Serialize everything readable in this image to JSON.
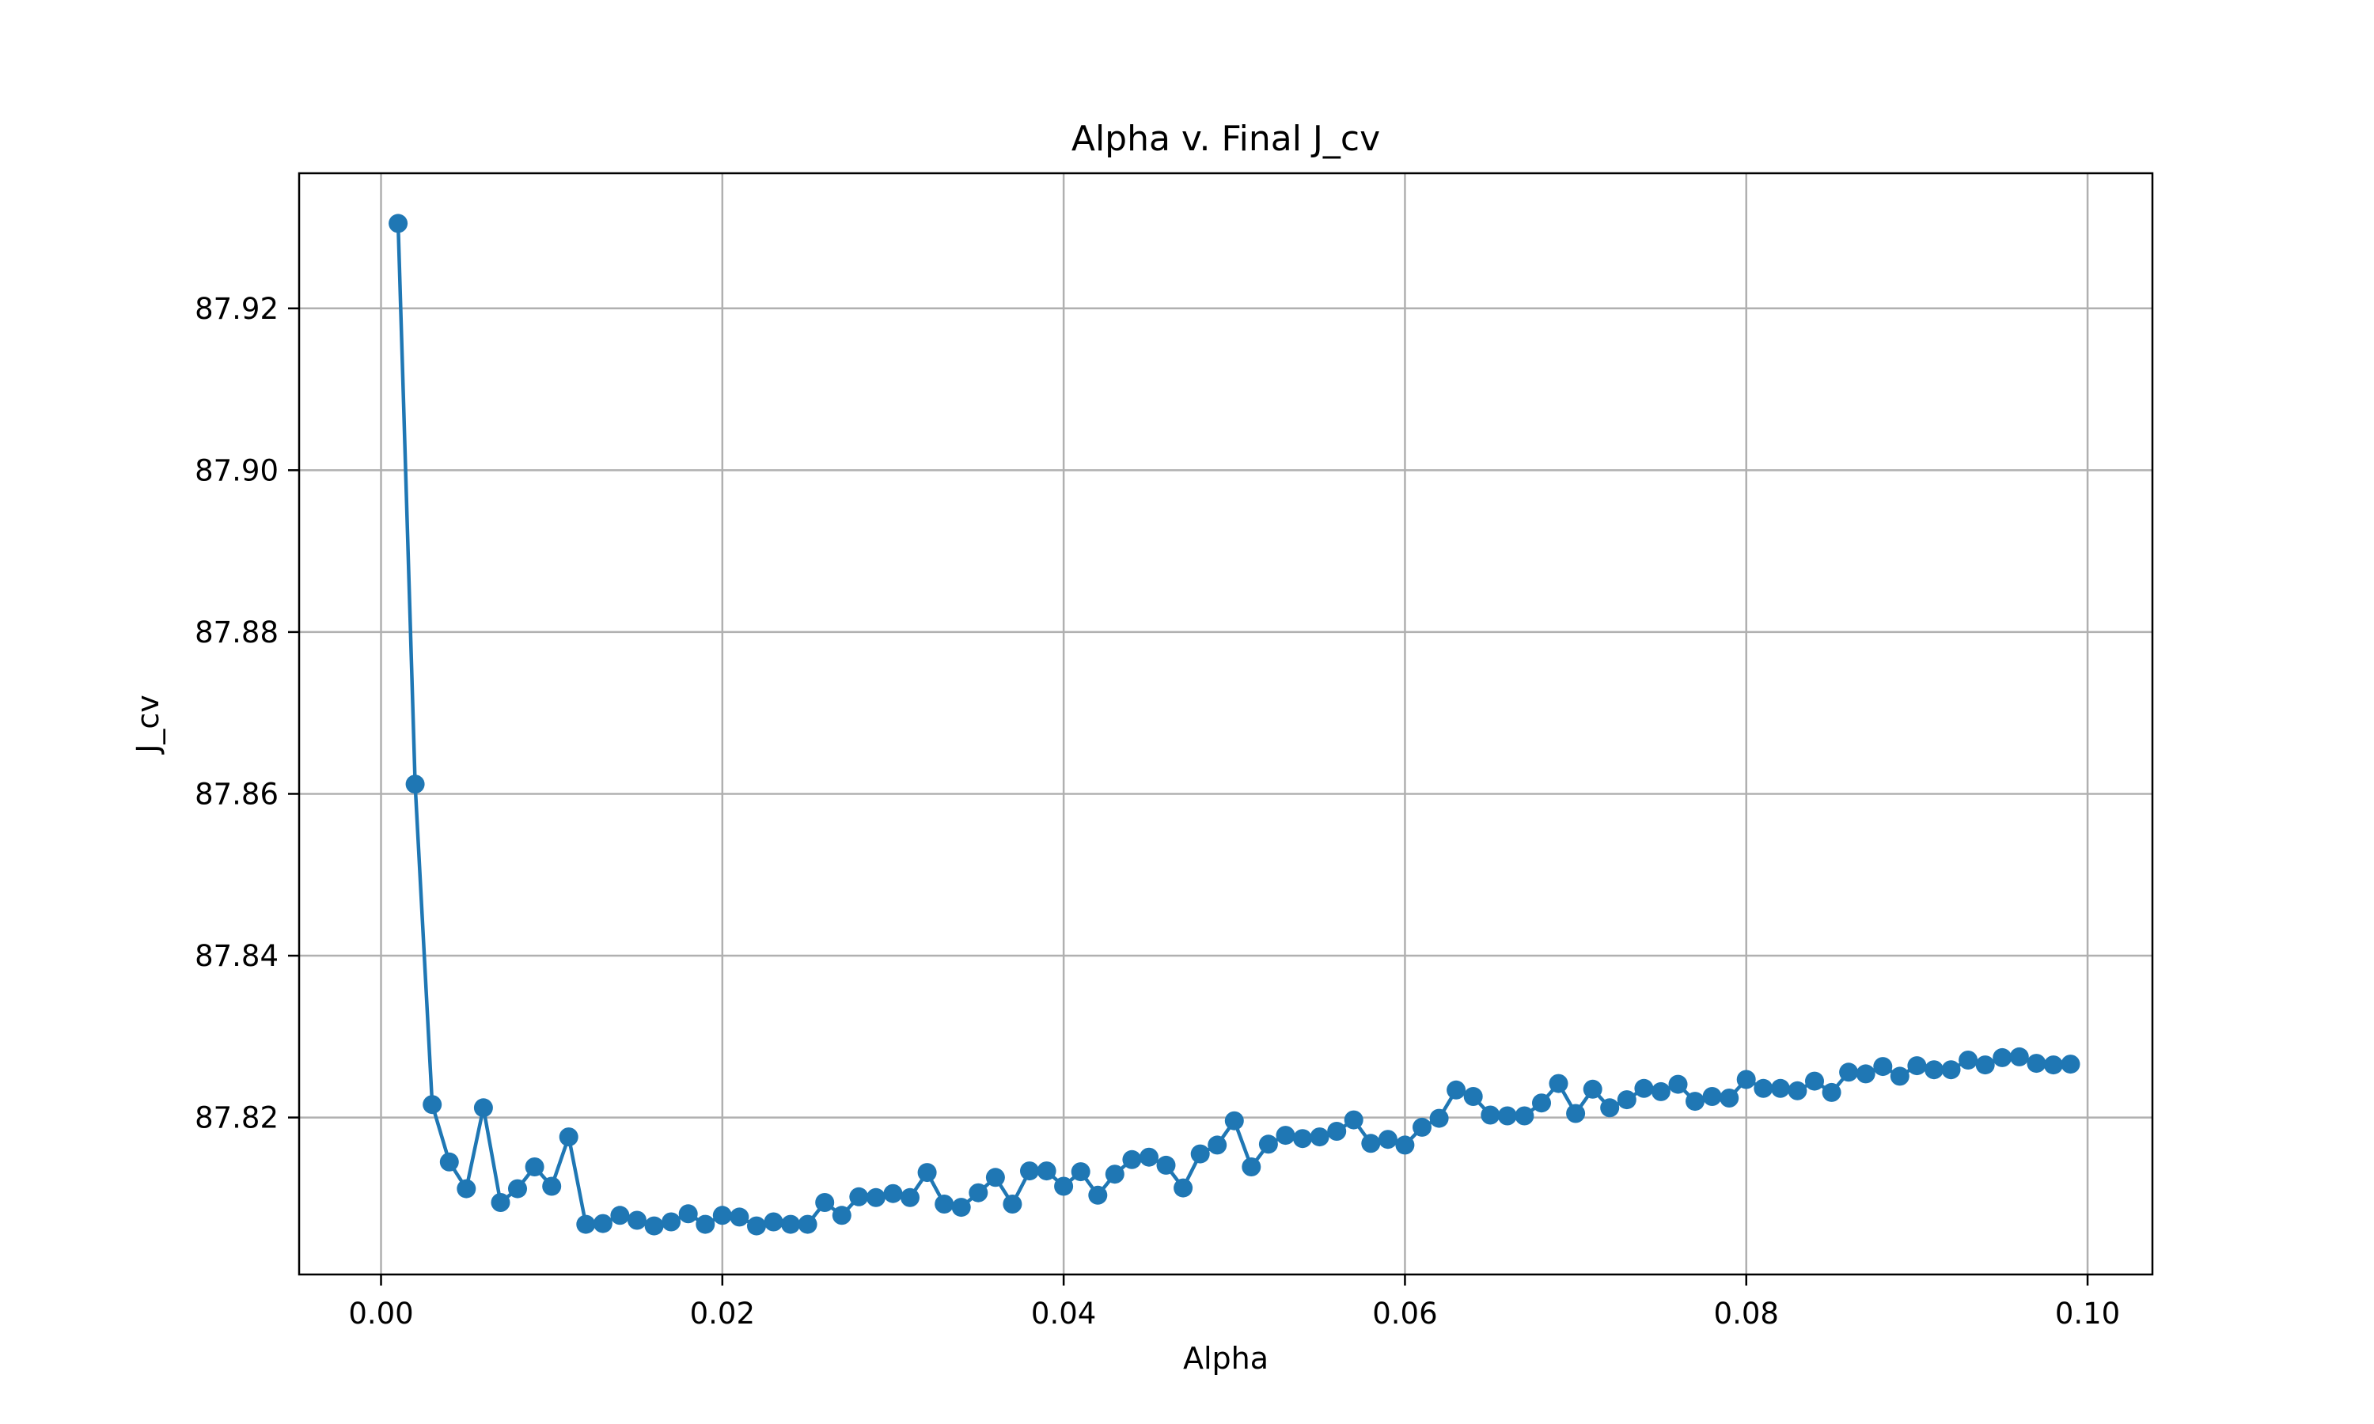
{
  "chart_data": {
    "type": "line",
    "title": "Alpha v. Final J_cv",
    "xlabel": "Alpha",
    "ylabel": "J_cv",
    "xlim": [
      -0.0048,
      0.1038
    ],
    "ylim": [
      87.8006,
      87.9367
    ],
    "xticks": [
      {
        "value": 0.0,
        "label": "0.00"
      },
      {
        "value": 0.02,
        "label": "0.02"
      },
      {
        "value": 0.04,
        "label": "0.04"
      },
      {
        "value": 0.06,
        "label": "0.06"
      },
      {
        "value": 0.08,
        "label": "0.08"
      },
      {
        "value": 0.1,
        "label": "0.10"
      }
    ],
    "yticks": [
      {
        "value": 87.82,
        "label": "87.82"
      },
      {
        "value": 87.84,
        "label": "87.84"
      },
      {
        "value": 87.86,
        "label": "87.86"
      },
      {
        "value": 87.88,
        "label": "87.88"
      },
      {
        "value": 87.9,
        "label": "87.90"
      },
      {
        "value": 87.92,
        "label": "87.92"
      }
    ],
    "grid": true,
    "color": "#1f77b4",
    "marker": "circle",
    "series": [
      {
        "x": [
          0.001,
          0.002,
          0.003,
          0.004,
          0.005,
          0.006,
          0.007,
          0.008,
          0.009,
          0.01,
          0.011,
          0.012,
          0.013,
          0.014,
          0.015,
          0.016,
          0.017,
          0.018,
          0.019,
          0.02,
          0.021,
          0.022,
          0.023,
          0.024,
          0.025,
          0.026,
          0.027,
          0.028,
          0.029,
          0.03,
          0.031,
          0.032,
          0.033,
          0.034,
          0.035,
          0.036,
          0.037,
          0.038,
          0.039,
          0.04,
          0.041,
          0.042,
          0.043,
          0.044,
          0.045,
          0.046,
          0.047,
          0.048,
          0.049,
          0.05,
          0.051,
          0.052,
          0.053,
          0.054,
          0.055,
          0.056,
          0.057,
          0.058,
          0.059,
          0.06,
          0.061,
          0.062,
          0.063,
          0.064,
          0.065,
          0.066,
          0.067,
          0.068,
          0.069,
          0.07,
          0.071,
          0.072,
          0.073,
          0.074,
          0.075,
          0.076,
          0.077,
          0.078,
          0.079,
          0.08,
          0.081,
          0.082,
          0.083,
          0.084,
          0.085,
          0.086,
          0.087,
          0.088,
          0.089,
          0.09,
          0.091,
          0.092,
          0.093,
          0.094,
          0.095,
          0.096,
          0.097,
          0.098,
          0.099
        ],
        "y": [
          87.9305,
          87.8612,
          87.8216,
          87.8145,
          87.8112,
          87.8212,
          87.8095,
          87.8112,
          87.8139,
          87.8115,
          87.8176,
          87.8068,
          87.8069,
          87.8079,
          87.8073,
          87.8066,
          87.8071,
          87.8081,
          87.8068,
          87.8079,
          87.8077,
          87.8066,
          87.8071,
          87.8068,
          87.8068,
          87.8095,
          87.8079,
          87.8102,
          87.8101,
          87.8106,
          87.8101,
          87.8132,
          87.8093,
          87.8089,
          87.8107,
          87.8126,
          87.8093,
          87.8134,
          87.8134,
          87.8115,
          87.8133,
          87.8104,
          87.813,
          87.8148,
          87.8151,
          87.8141,
          87.8113,
          87.8155,
          87.8166,
          87.8196,
          87.8139,
          87.8167,
          87.8178,
          87.8174,
          87.8176,
          87.8183,
          87.8197,
          87.8168,
          87.8173,
          87.8166,
          87.8188,
          87.8199,
          87.8234,
          87.8226,
          87.8203,
          87.8202,
          87.8202,
          87.8218,
          87.8242,
          87.8205,
          87.8235,
          87.8212,
          87.8222,
          87.8236,
          87.8232,
          87.8241,
          87.822,
          87.8226,
          87.8224,
          87.8247,
          87.8236,
          87.8236,
          87.8233,
          87.8245,
          87.8231,
          87.8256,
          87.8254,
          87.8263,
          87.8251,
          87.8264,
          87.8259,
          87.8259,
          87.8271,
          87.8265,
          87.8274,
          87.8275,
          87.8267,
          87.8265,
          87.8266
        ]
      }
    ]
  }
}
